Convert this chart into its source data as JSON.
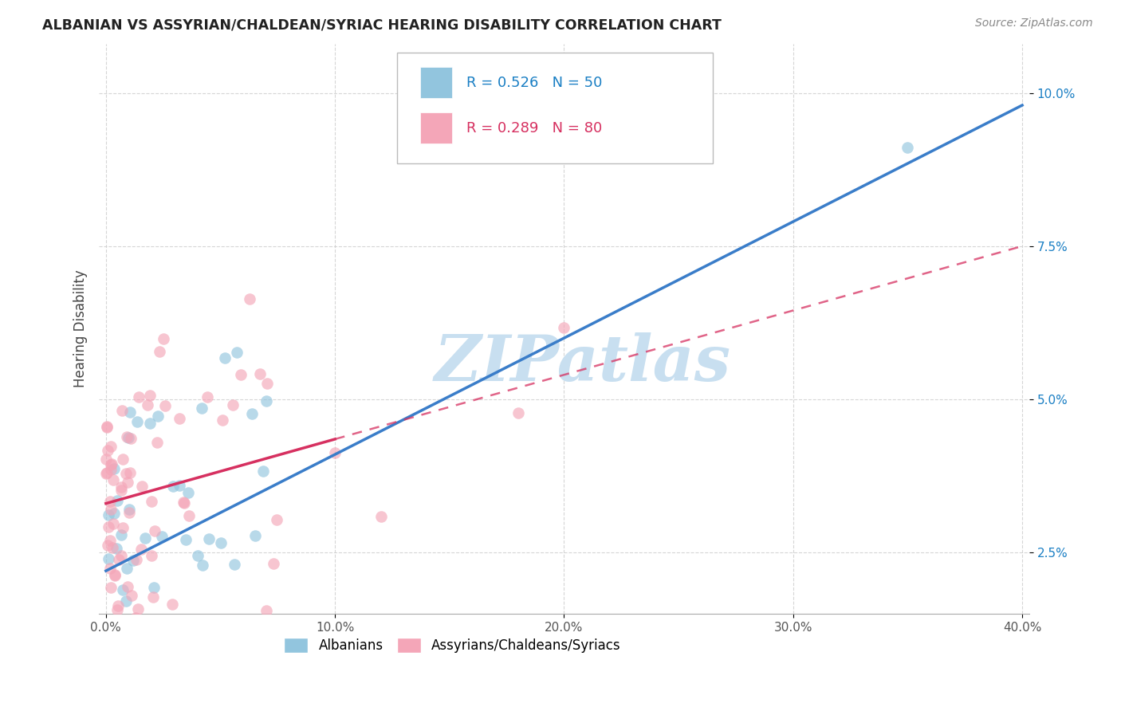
{
  "title": "ALBANIAN VS ASSYRIAN/CHALDEAN/SYRIAC HEARING DISABILITY CORRELATION CHART",
  "source": "Source: ZipAtlas.com",
  "ylabel": "Hearing Disability",
  "blue_R": "0.526",
  "blue_N": "50",
  "pink_R": "0.289",
  "pink_N": "80",
  "blue_scatter_color": "#92c5de",
  "pink_scatter_color": "#f4a6b8",
  "regression_blue_color": "#3a7dc9",
  "regression_pink_color": "#d63060",
  "watermark_color": "#c8dff0",
  "blue_line_intercept": 2.2,
  "blue_line_slope_per40": 7.6,
  "pink_line_intercept": 3.3,
  "pink_line_slope_per40": 4.2,
  "pink_solid_end_x": 10.0,
  "xlim_min": 0.0,
  "xlim_max": 40.0,
  "ylim_min": 1.5,
  "ylim_max": 10.8,
  "ytick_values": [
    2.5,
    5.0,
    7.5,
    10.0
  ],
  "xtick_values": [
    0.0,
    10.0,
    20.0,
    30.0,
    40.0
  ]
}
